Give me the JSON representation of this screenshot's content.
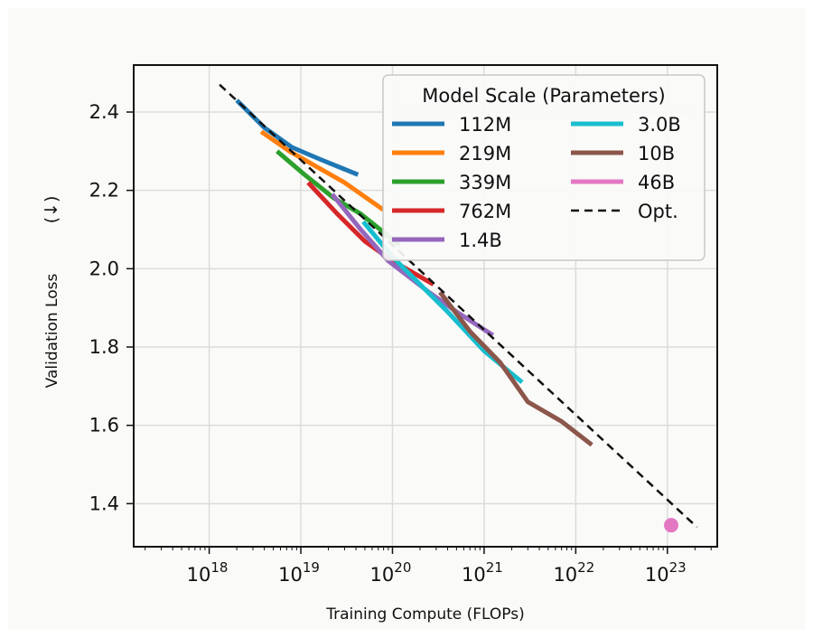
{
  "chart_data": {
    "type": "line",
    "xlabel": "Training Compute (FLOPs)",
    "ylabel": "Validation Loss",
    "ylabel_arrow": "(↓)",
    "x_scale": "log",
    "xlim": [
      1.5e+17,
      3.5e+23
    ],
    "ylim": [
      1.29,
      2.52
    ],
    "x_ticks": [
      {
        "value": 1e+18,
        "base": "10",
        "exp": "18"
      },
      {
        "value": 1e+19,
        "base": "10",
        "exp": "19"
      },
      {
        "value": 1e+20,
        "base": "10",
        "exp": "20"
      },
      {
        "value": 1e+21,
        "base": "10",
        "exp": "21"
      },
      {
        "value": 1e+22,
        "base": "10",
        "exp": "22"
      },
      {
        "value": 1e+23,
        "base": "10",
        "exp": "23"
      }
    ],
    "y_ticks": [
      {
        "value": 1.4,
        "label": "1.4"
      },
      {
        "value": 1.6,
        "label": "1.6"
      },
      {
        "value": 1.8,
        "label": "1.8"
      },
      {
        "value": 2.0,
        "label": "2.0"
      },
      {
        "value": 2.2,
        "label": "2.2"
      },
      {
        "value": 2.4,
        "label": "2.4"
      }
    ],
    "grid": true,
    "legend": {
      "title": "Model Scale (Parameters)",
      "placement": "top-right",
      "columns": 2
    },
    "series": [
      {
        "name": "112M",
        "color": "#1f77b4",
        "style": "solid",
        "points": [
          [
            2e+18,
            2.43
          ],
          [
            4e+18,
            2.36
          ],
          [
            8e+18,
            2.31
          ],
          [
            1.6e+19,
            2.28
          ],
          [
            4.2e+19,
            2.24
          ]
        ]
      },
      {
        "name": "219M",
        "color": "#ff7f0e",
        "style": "solid",
        "points": [
          [
            3.7e+18,
            2.35
          ],
          [
            7.5e+18,
            2.3
          ],
          [
            1.5e+19,
            2.26
          ],
          [
            3e+19,
            2.22
          ],
          [
            8e+19,
            2.15
          ]
        ]
      },
      {
        "name": "339M",
        "color": "#2ca02c",
        "style": "solid",
        "points": [
          [
            5.5e+18,
            2.3
          ],
          [
            1.1e+19,
            2.24
          ],
          [
            2.3e+19,
            2.18
          ],
          [
            4.5e+19,
            2.14
          ],
          [
            1.2e+20,
            2.06
          ]
        ]
      },
      {
        "name": "762M",
        "color": "#d62728",
        "style": "solid",
        "points": [
          [
            1.2e+19,
            2.22
          ],
          [
            2.5e+19,
            2.14
          ],
          [
            5e+19,
            2.07
          ],
          [
            1e+20,
            2.02
          ],
          [
            2.8e+20,
            1.96
          ]
        ]
      },
      {
        "name": "1.4B",
        "color": "#9467bd",
        "style": "solid",
        "points": [
          [
            2.2e+19,
            2.19
          ],
          [
            4.5e+19,
            2.1
          ],
          [
            9e+19,
            2.02
          ],
          [
            2.5e+20,
            1.94
          ],
          [
            5e+20,
            1.89
          ],
          [
            1.25e+21,
            1.83
          ]
        ]
      },
      {
        "name": "3.0B",
        "color": "#17becf",
        "style": "solid",
        "points": [
          [
            4.8e+19,
            2.12
          ],
          [
            1e+20,
            2.03
          ],
          [
            2e+20,
            1.96
          ],
          [
            4e+20,
            1.89
          ],
          [
            1e+21,
            1.79
          ],
          [
            2.6e+21,
            1.71
          ]
        ]
      },
      {
        "name": "10B",
        "color": "#8c564b",
        "style": "solid",
        "points": [
          [
            3.3e+20,
            1.94
          ],
          [
            7e+20,
            1.84
          ],
          [
            1.5e+21,
            1.76
          ],
          [
            3e+21,
            1.66
          ],
          [
            7e+21,
            1.61
          ],
          [
            1.5e+22,
            1.55
          ]
        ]
      },
      {
        "name": "46B",
        "color": "#e377c2",
        "style": "marker",
        "points": [
          [
            1.1e+23,
            1.345
          ]
        ]
      },
      {
        "name": "Opt.",
        "color": "#111111",
        "style": "dashed",
        "points": [
          [
            1.3e+18,
            2.47
          ],
          [
            2.1e+23,
            1.34
          ]
        ]
      }
    ]
  }
}
